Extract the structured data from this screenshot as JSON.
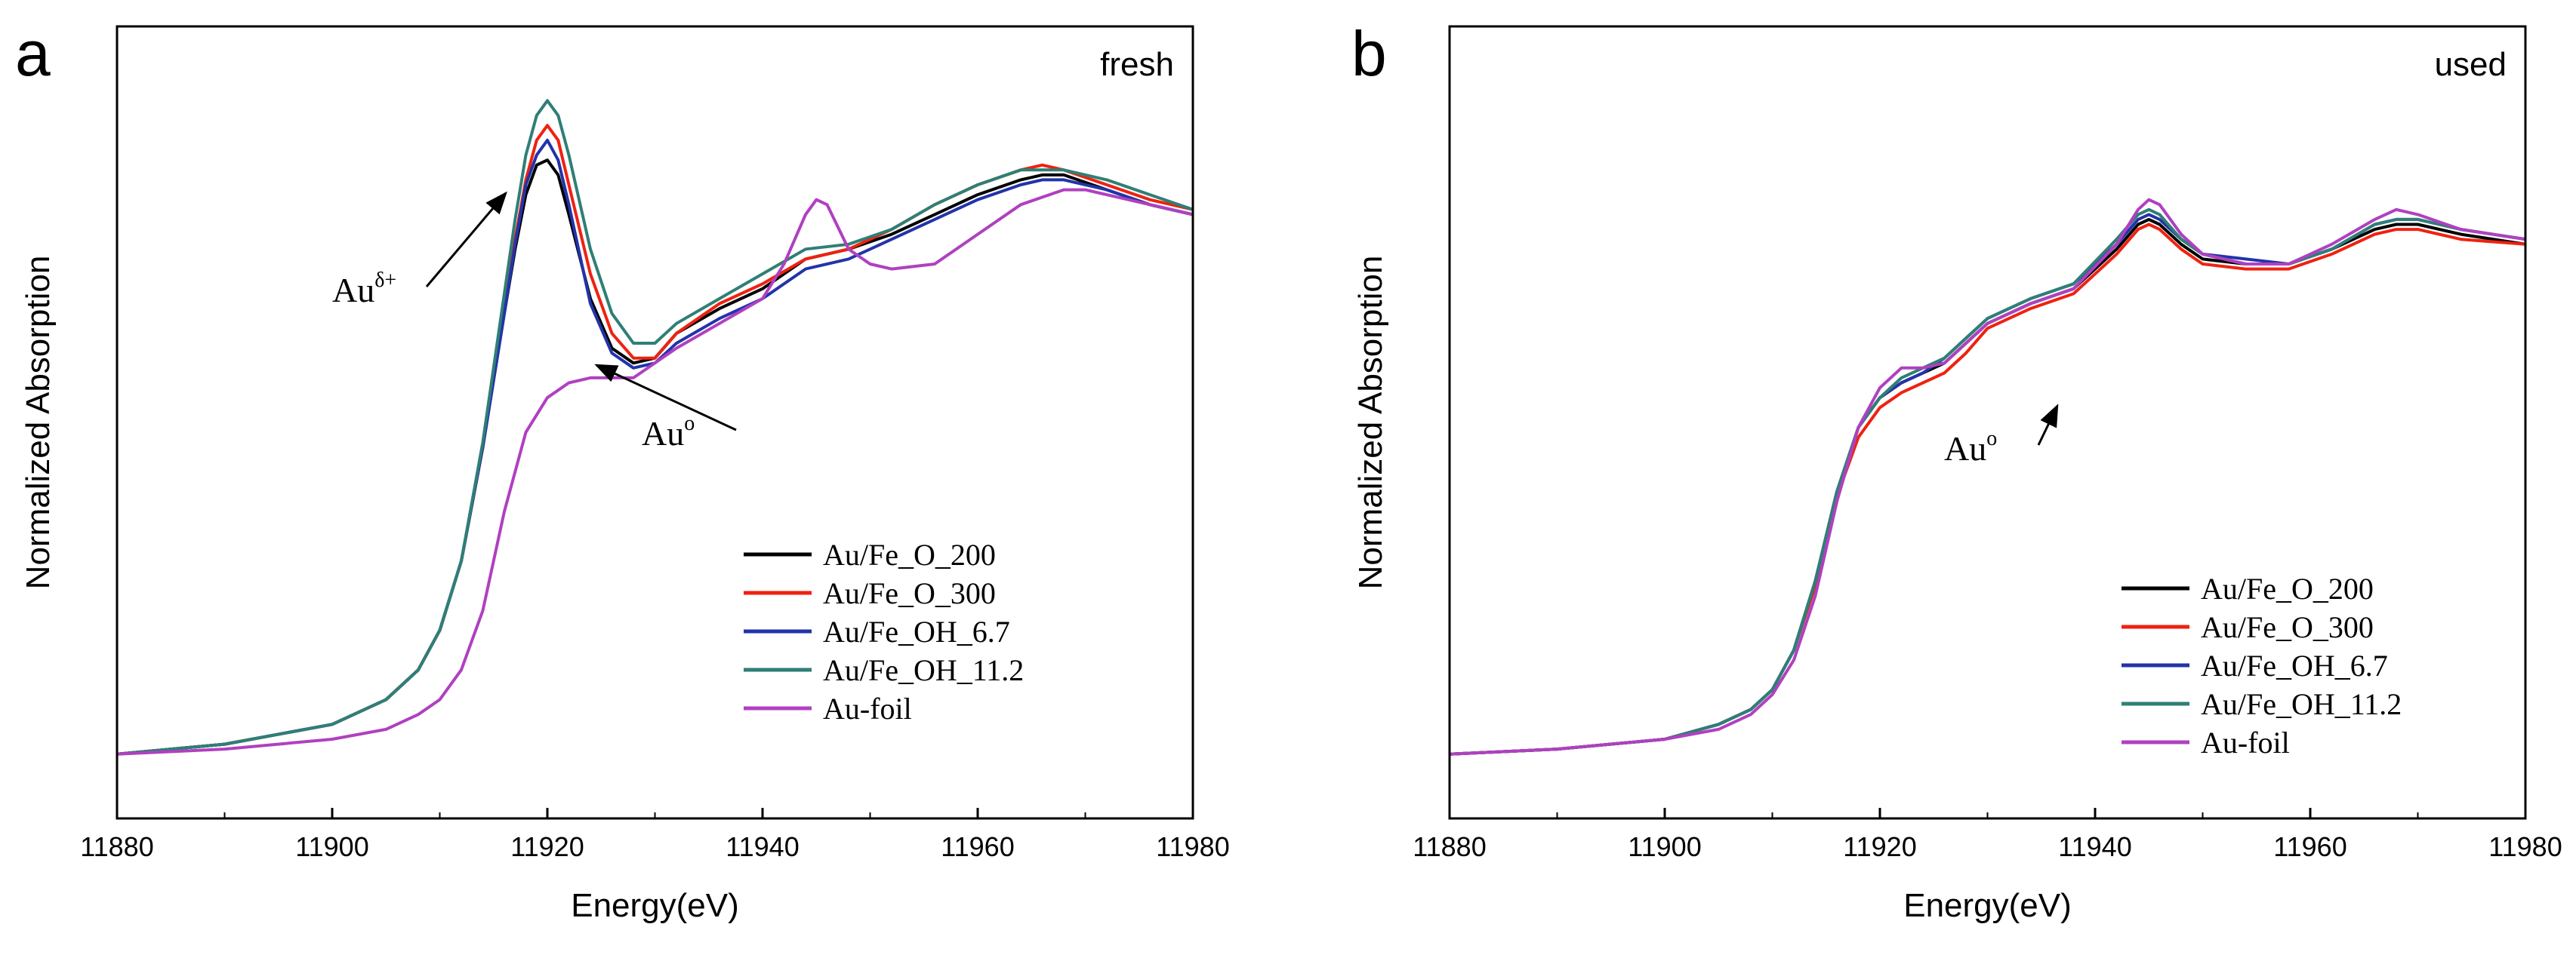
{
  "colors": {
    "Au/Fe_O_200": "#000000",
    "Au/Fe_O_300": "#ee2211",
    "Au/Fe_OH_6.7": "#2233aa",
    "Au/Fe_OH_11.2": "#2f7f76",
    "Au-foil": "#b040c0"
  },
  "chart_data": [
    {
      "type": "line",
      "panel_label": "a",
      "condition": "fresh",
      "xlabel": "Energy(eV)",
      "ylabel": "Normalized Absorption",
      "xlim": [
        11880,
        11980
      ],
      "ylim": [
        0,
        1.6
      ],
      "xticks": [
        "11880",
        "11900",
        "11920",
        "11940",
        "11960",
        "11980"
      ],
      "legend_position": "bottom-right",
      "annotations": [
        {
          "base": "Au",
          "sup": "δ+",
          "target_x": 11920,
          "target_y": 1.33
        },
        {
          "base": "Au",
          "sup": "o",
          "target_x": 11924,
          "target_y": 0.88
        }
      ],
      "series": [
        {
          "name": "Au/Fe_O_200",
          "x": [
            11880,
            11890,
            11900,
            11905,
            11908,
            11910,
            11912,
            11914,
            11916,
            11917,
            11918,
            11919,
            11920,
            11921,
            11922,
            11924,
            11926,
            11928,
            11930,
            11932,
            11936,
            11940,
            11944,
            11948,
            11952,
            11956,
            11960,
            11964,
            11966,
            11968,
            11972,
            11976,
            11980
          ],
          "y": [
            0.13,
            0.15,
            0.19,
            0.24,
            0.3,
            0.38,
            0.52,
            0.75,
            1.02,
            1.15,
            1.26,
            1.32,
            1.33,
            1.3,
            1.22,
            1.05,
            0.95,
            0.92,
            0.93,
            0.98,
            1.03,
            1.07,
            1.13,
            1.15,
            1.18,
            1.22,
            1.26,
            1.29,
            1.3,
            1.3,
            1.27,
            1.24,
            1.22
          ]
        },
        {
          "name": "Au/Fe_O_300",
          "x": [
            11880,
            11890,
            11900,
            11905,
            11908,
            11910,
            11912,
            11914,
            11916,
            11917,
            11918,
            11919,
            11920,
            11921,
            11922,
            11924,
            11926,
            11928,
            11930,
            11932,
            11936,
            11940,
            11944,
            11948,
            11952,
            11956,
            11960,
            11964,
            11966,
            11968,
            11972,
            11976,
            11980
          ],
          "y": [
            0.13,
            0.15,
            0.19,
            0.24,
            0.3,
            0.38,
            0.52,
            0.75,
            1.03,
            1.17,
            1.29,
            1.37,
            1.4,
            1.37,
            1.28,
            1.1,
            0.98,
            0.93,
            0.93,
            0.98,
            1.04,
            1.08,
            1.13,
            1.15,
            1.19,
            1.24,
            1.28,
            1.31,
            1.32,
            1.31,
            1.28,
            1.25,
            1.23
          ]
        },
        {
          "name": "Au/Fe_OH_6.7",
          "x": [
            11880,
            11890,
            11900,
            11905,
            11908,
            11910,
            11912,
            11914,
            11916,
            11917,
            11918,
            11919,
            11920,
            11921,
            11922,
            11924,
            11926,
            11928,
            11930,
            11932,
            11936,
            11940,
            11944,
            11948,
            11952,
            11956,
            11960,
            11964,
            11966,
            11968,
            11972,
            11976,
            11980
          ],
          "y": [
            0.13,
            0.15,
            0.19,
            0.24,
            0.3,
            0.38,
            0.52,
            0.75,
            1.02,
            1.16,
            1.28,
            1.34,
            1.37,
            1.33,
            1.24,
            1.04,
            0.94,
            0.91,
            0.92,
            0.96,
            1.01,
            1.05,
            1.11,
            1.13,
            1.17,
            1.21,
            1.25,
            1.28,
            1.29,
            1.29,
            1.27,
            1.24,
            1.22
          ]
        },
        {
          "name": "Au/Fe_OH_11.2",
          "x": [
            11880,
            11890,
            11900,
            11905,
            11908,
            11910,
            11912,
            11914,
            11916,
            11917,
            11918,
            11919,
            11920,
            11921,
            11922,
            11924,
            11926,
            11928,
            11930,
            11932,
            11936,
            11940,
            11944,
            11948,
            11952,
            11956,
            11960,
            11964,
            11966,
            11968,
            11972,
            11976,
            11980
          ],
          "y": [
            0.13,
            0.15,
            0.19,
            0.24,
            0.3,
            0.38,
            0.52,
            0.76,
            1.06,
            1.21,
            1.34,
            1.42,
            1.45,
            1.42,
            1.34,
            1.15,
            1.02,
            0.96,
            0.96,
            1.0,
            1.05,
            1.1,
            1.15,
            1.16,
            1.19,
            1.24,
            1.28,
            1.31,
            1.31,
            1.31,
            1.29,
            1.26,
            1.23
          ]
        },
        {
          "name": "Au-foil",
          "x": [
            11880,
            11890,
            11900,
            11905,
            11908,
            11910,
            11912,
            11914,
            11916,
            11918,
            11920,
            11922,
            11924,
            11928,
            11932,
            11936,
            11940,
            11942,
            11944,
            11945,
            11946,
            11948,
            11950,
            11952,
            11956,
            11960,
            11964,
            11968,
            11970,
            11974,
            11980
          ],
          "y": [
            0.13,
            0.14,
            0.16,
            0.18,
            0.21,
            0.24,
            0.3,
            0.42,
            0.62,
            0.78,
            0.85,
            0.88,
            0.89,
            0.89,
            0.95,
            1.0,
            1.05,
            1.12,
            1.22,
            1.25,
            1.24,
            1.15,
            1.12,
            1.11,
            1.12,
            1.18,
            1.24,
            1.27,
            1.27,
            1.25,
            1.22
          ]
        }
      ]
    },
    {
      "type": "line",
      "panel_label": "b",
      "condition": "used",
      "xlabel": "Energy(eV)",
      "ylabel": "Normalized Absorption",
      "xlim": [
        11880,
        11980
      ],
      "ylim": [
        0,
        1.6
      ],
      "xticks": [
        "11880",
        "11900",
        "11920",
        "11940",
        "11960",
        "11980"
      ],
      "legend_position": "bottom-right",
      "annotations": [
        {
          "base": "Au",
          "sup": "o",
          "target_x": 11922,
          "target_y": 0.86
        }
      ],
      "series": [
        {
          "name": "Au/Fe_O_200",
          "x": [
            11880,
            11890,
            11900,
            11905,
            11908,
            11910,
            11912,
            11914,
            11916,
            11918,
            11920,
            11922,
            11924,
            11926,
            11928,
            11930,
            11934,
            11938,
            11942,
            11944,
            11945,
            11946,
            11948,
            11950,
            11954,
            11958,
            11962,
            11966,
            11968,
            11970,
            11974,
            11980
          ],
          "y": [
            0.13,
            0.14,
            0.16,
            0.19,
            0.22,
            0.26,
            0.34,
            0.48,
            0.66,
            0.79,
            0.85,
            0.88,
            0.9,
            0.92,
            0.96,
            1.0,
            1.04,
            1.07,
            1.15,
            1.2,
            1.21,
            1.2,
            1.16,
            1.13,
            1.12,
            1.12,
            1.15,
            1.19,
            1.2,
            1.2,
            1.18,
            1.16
          ]
        },
        {
          "name": "Au/Fe_O_300",
          "x": [
            11880,
            11890,
            11900,
            11905,
            11908,
            11910,
            11912,
            11914,
            11916,
            11918,
            11920,
            11922,
            11924,
            11926,
            11928,
            11930,
            11934,
            11938,
            11942,
            11944,
            11945,
            11946,
            11948,
            11950,
            11954,
            11958,
            11962,
            11966,
            11968,
            11970,
            11974,
            11980
          ],
          "y": [
            0.13,
            0.14,
            0.16,
            0.19,
            0.22,
            0.26,
            0.34,
            0.47,
            0.65,
            0.77,
            0.83,
            0.86,
            0.88,
            0.9,
            0.94,
            0.99,
            1.03,
            1.06,
            1.14,
            1.19,
            1.2,
            1.19,
            1.15,
            1.12,
            1.11,
            1.11,
            1.14,
            1.18,
            1.19,
            1.19,
            1.17,
            1.16
          ]
        },
        {
          "name": "Au/Fe_OH_6.7",
          "x": [
            11880,
            11890,
            11900,
            11905,
            11908,
            11910,
            11912,
            11914,
            11916,
            11918,
            11920,
            11922,
            11924,
            11926,
            11928,
            11930,
            11934,
            11938,
            11942,
            11944,
            11945,
            11946,
            11948,
            11950,
            11954,
            11958,
            11962,
            11966,
            11968,
            11970,
            11974,
            11980
          ],
          "y": [
            0.13,
            0.14,
            0.16,
            0.19,
            0.22,
            0.26,
            0.34,
            0.48,
            0.66,
            0.79,
            0.85,
            0.88,
            0.9,
            0.93,
            0.97,
            1.01,
            1.05,
            1.08,
            1.16,
            1.21,
            1.22,
            1.21,
            1.17,
            1.14,
            1.13,
            1.12,
            1.15,
            1.2,
            1.21,
            1.21,
            1.19,
            1.17
          ]
        },
        {
          "name": "Au/Fe_OH_11.2",
          "x": [
            11880,
            11890,
            11900,
            11905,
            11908,
            11910,
            11912,
            11914,
            11916,
            11918,
            11920,
            11922,
            11924,
            11926,
            11928,
            11930,
            11934,
            11938,
            11942,
            11944,
            11945,
            11946,
            11948,
            11950,
            11954,
            11958,
            11962,
            11966,
            11968,
            11970,
            11974,
            11980
          ],
          "y": [
            0.13,
            0.14,
            0.16,
            0.19,
            0.22,
            0.26,
            0.34,
            0.48,
            0.66,
            0.79,
            0.85,
            0.89,
            0.91,
            0.93,
            0.97,
            1.01,
            1.05,
            1.08,
            1.17,
            1.22,
            1.23,
            1.22,
            1.17,
            1.14,
            1.12,
            1.12,
            1.15,
            1.2,
            1.21,
            1.21,
            1.19,
            1.17
          ]
        },
        {
          "name": "Au-foil",
          "x": [
            11880,
            11890,
            11900,
            11905,
            11908,
            11910,
            11912,
            11914,
            11916,
            11918,
            11920,
            11922,
            11924,
            11926,
            11928,
            11930,
            11934,
            11938,
            11942,
            11944,
            11945,
            11946,
            11948,
            11950,
            11954,
            11958,
            11962,
            11966,
            11968,
            11970,
            11974,
            11980
          ],
          "y": [
            0.13,
            0.14,
            0.16,
            0.18,
            0.21,
            0.25,
            0.32,
            0.45,
            0.64,
            0.79,
            0.87,
            0.91,
            0.91,
            0.92,
            0.96,
            1.0,
            1.04,
            1.07,
            1.16,
            1.23,
            1.25,
            1.24,
            1.18,
            1.14,
            1.12,
            1.12,
            1.16,
            1.21,
            1.23,
            1.22,
            1.19,
            1.17
          ]
        }
      ]
    }
  ]
}
